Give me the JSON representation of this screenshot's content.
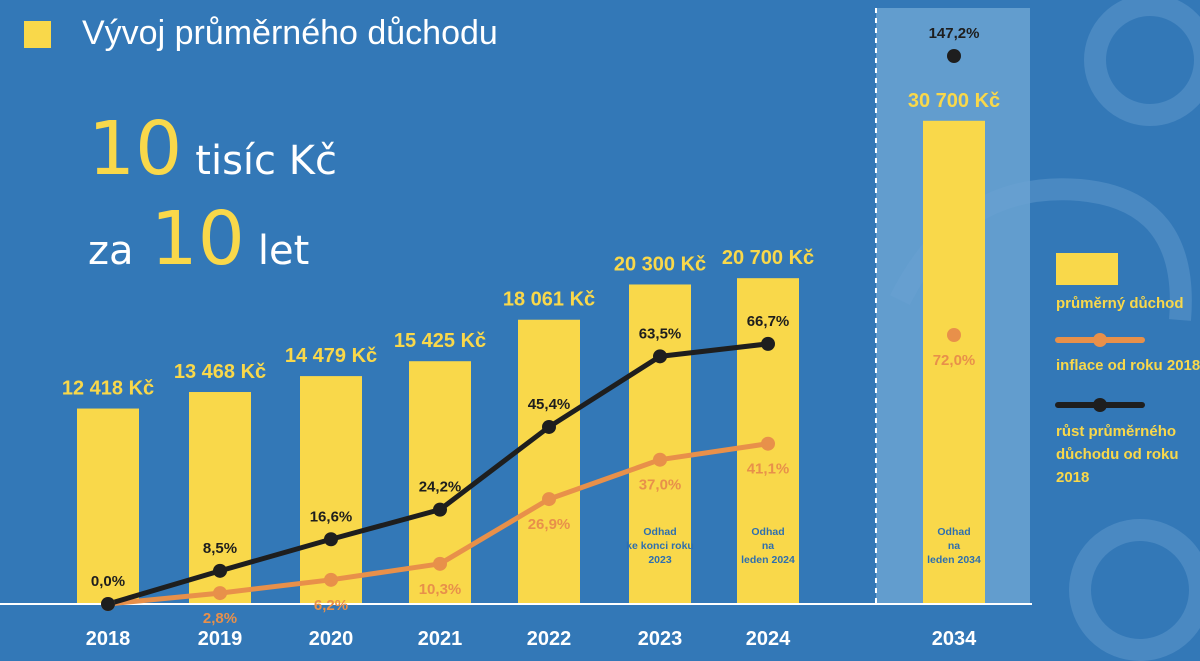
{
  "title": "Vývoj průměrného důchodu",
  "headline": {
    "line1_number": "10",
    "line1_text": "tisíc Kč",
    "line2_prefix": "za",
    "line2_number": "10",
    "line2_text": "let"
  },
  "colors": {
    "background": "#3378b7",
    "highlight_panel": "#6ba3d2",
    "bar": "#f9d84a",
    "inflation": "#e8904a",
    "growth": "#1e1e1e",
    "value_label": "#f9d84a",
    "axis_label": "#ffffff"
  },
  "legend": {
    "pension": "průměrný důchod",
    "inflation": "inflace od roku 2018",
    "growth": "růst průměrného důchodu od roku 2018"
  },
  "chart_data": {
    "type": "bar",
    "title": "Vývoj průměrného důchodu",
    "xlabel": "",
    "ylabel": "",
    "categories": [
      "2018",
      "2019",
      "2020",
      "2021",
      "2022",
      "2023",
      "2024",
      "2034"
    ],
    "unit": "Kč",
    "ylim": [
      0,
      31000
    ],
    "series": [
      {
        "name": "průměrný důchod",
        "type": "bar",
        "values": [
          12418,
          13468,
          14479,
          15425,
          18061,
          20300,
          20700,
          30700
        ],
        "labels": [
          "12 418 Kč",
          "13 468 Kč",
          "14 479 Kč",
          "15 425 Kč",
          "18 061 Kč",
          "20 300 Kč",
          "20 700 Kč",
          "30 700 Kč"
        ]
      },
      {
        "name": "inflace od roku 2018",
        "type": "line",
        "unit": "%",
        "values": [
          0.0,
          2.8,
          6.2,
          10.3,
          26.9,
          37.0,
          41.1,
          72.0
        ],
        "labels": [
          "",
          "2,8%",
          "6,2%",
          "10,3%",
          "26,9%",
          "37,0%",
          "41,1%",
          "72,0%"
        ]
      },
      {
        "name": "růst průměrného důchodu od roku 2018",
        "type": "line",
        "unit": "%",
        "values": [
          0.0,
          8.5,
          16.6,
          24.2,
          45.4,
          63.5,
          66.7,
          147.2
        ],
        "labels": [
          "0,0%",
          "8,5%",
          "16,6%",
          "24,2%",
          "45,4%",
          "63,5%",
          "66,7%",
          "147,2%"
        ]
      }
    ],
    "notes": [
      {
        "category": "2023",
        "text": [
          "Odhad",
          "ke konci roku",
          "2023"
        ]
      },
      {
        "category": "2024",
        "text": [
          "Odhad",
          "na",
          "leden 2024"
        ]
      },
      {
        "category": "2034",
        "text": [
          "Odhad",
          "na",
          "leden 2034"
        ]
      }
    ],
    "highlighted_category": "2034",
    "grid": false,
    "legend_position": "right"
  }
}
